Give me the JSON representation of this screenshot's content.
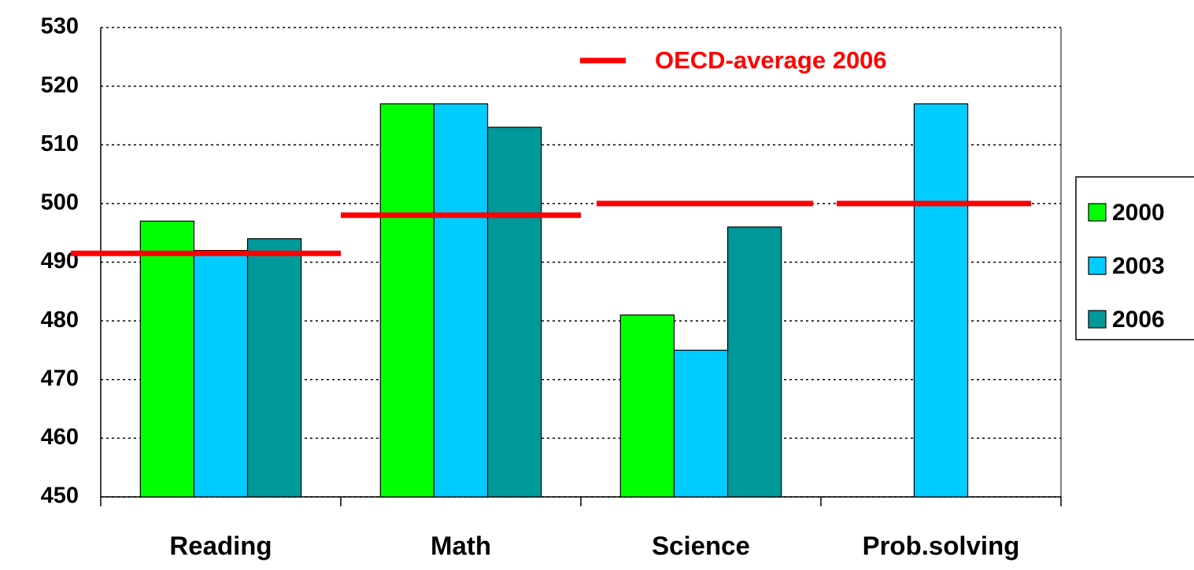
{
  "chart_data": {
    "type": "bar",
    "categories": [
      "Reading",
      "Math",
      "Science",
      "Prob.solving"
    ],
    "series": [
      {
        "name": "2000",
        "color": "#00ff00",
        "values": [
          497,
          517,
          481,
          null
        ]
      },
      {
        "name": "2003",
        "color": "#00ccff",
        "values": [
          492,
          517,
          475,
          517
        ]
      },
      {
        "name": "2006",
        "color": "#009999",
        "values": [
          494,
          513,
          496,
          null
        ]
      }
    ],
    "reference": {
      "name": "OECD-average 2006",
      "color": "#ff0000",
      "values": [
        491.5,
        498,
        500,
        500
      ]
    },
    "ylim": [
      450,
      530
    ],
    "yticks": [
      450,
      460,
      470,
      480,
      490,
      500,
      510,
      520,
      530
    ],
    "grid": true,
    "legend": "right"
  }
}
